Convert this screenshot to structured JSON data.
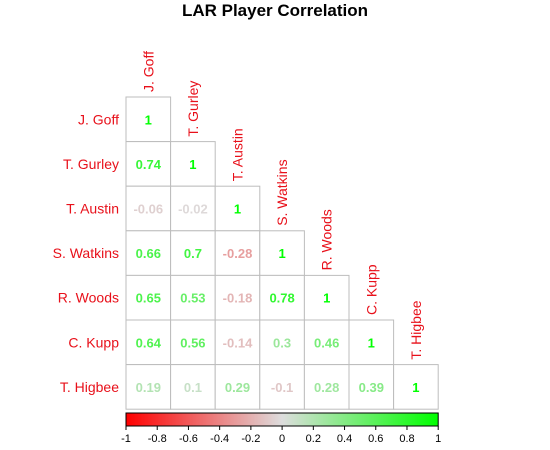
{
  "chart_data": {
    "type": "heatmap",
    "title": "LAR Player Correlation",
    "labels": [
      "J. Goff",
      "T. Gurley",
      "T. Austin",
      "S. Watkins",
      "R. Woods",
      "C. Kupp",
      "T. Higbee"
    ],
    "matrix": [
      [
        1
      ],
      [
        0.74,
        1
      ],
      [
        -0.06,
        -0.02,
        1
      ],
      [
        0.66,
        0.7,
        -0.28,
        1
      ],
      [
        0.65,
        0.53,
        -0.18,
        0.78,
        1
      ],
      [
        0.64,
        0.56,
        -0.14,
        0.3,
        0.46,
        1
      ],
      [
        0.19,
        0.1,
        0.29,
        -0.1,
        0.28,
        0.39,
        1
      ]
    ],
    "display_text": [
      [
        "1"
      ],
      [
        "0.74",
        "1"
      ],
      [
        "-0.06",
        "-0.02",
        "1"
      ],
      [
        "0.66",
        "0.7",
        "-0.28",
        "1"
      ],
      [
        "0.65",
        "0.53",
        "-0.18",
        "0.78",
        "1"
      ],
      [
        "0.64",
        "0.56",
        "-0.14",
        "0.3",
        "0.46",
        "1"
      ],
      [
        "0.19",
        "0.1",
        "0.29",
        "-0.1",
        "0.28",
        "0.39",
        "1"
      ]
    ],
    "colorbar": {
      "range": [
        -1,
        1
      ],
      "ticks": [
        -1,
        -0.8,
        -0.6,
        -0.4,
        -0.2,
        0,
        0.2,
        0.4,
        0.6,
        0.8,
        1
      ],
      "tick_labels": [
        "-1",
        "-0.8",
        "-0.6",
        "-0.4",
        "-0.2",
        "0",
        "0.2",
        "0.4",
        "0.6",
        "0.8",
        "1"
      ],
      "low_color": "#ff0000",
      "mid_color": "#dddddd",
      "high_color": "#00ff00"
    },
    "label_color": "#e8101a",
    "layout": "lower-triangle"
  }
}
